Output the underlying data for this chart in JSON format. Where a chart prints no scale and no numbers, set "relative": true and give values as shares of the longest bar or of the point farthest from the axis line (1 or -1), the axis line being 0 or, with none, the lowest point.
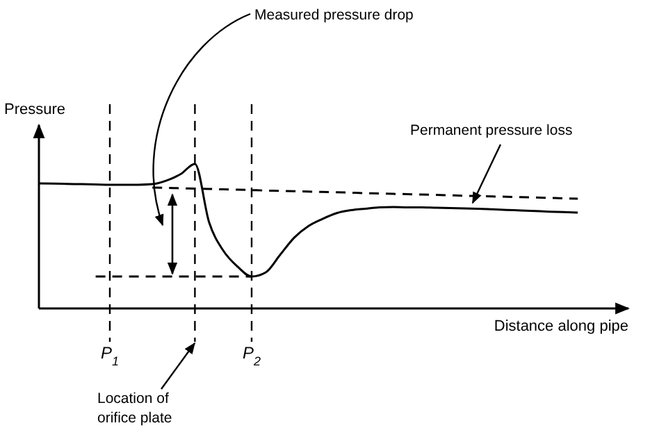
{
  "chart_data": {
    "type": "line",
    "relative": true,
    "ylabel": "Pressure",
    "xlabel": "Distance along pipe",
    "categories": [
      null,
      null,
      null,
      null,
      null,
      "P$_{1}$",
      null,
      null,
      null,
      null,
      null,
      null,
      null,
      null,
      null,
      "P$_{2}$",
      null,
      null,
      null,
      null,
      null,
      null,
      null,
      null,
      null,
      null,
      null,
      null,
      null,
      null,
      null,
      null,
      null,
      null,
      null,
      null,
      null,
      null,
      null
    ],
    "series": [
      {
        "color": "#000000",
        "line_style": "solid",
        "values": [
          0.865,
          0.864,
          0.862,
          0.86,
          0.858,
          0.856,
          0.856,
          0.856,
          0.86,
          0.885,
          0.93,
          1,
          0.596,
          0.4,
          0.29,
          0.221,
          0.25,
          0.37,
          0.49,
          0.57,
          0.62,
          0.66,
          0.68,
          0.69,
          0.7,
          0.702,
          0.7,
          0.7,
          0.697,
          0.695,
          0.692,
          0.69,
          0.686,
          0.682,
          0.678,
          0.674,
          0.67,
          0.667,
          0.663
        ]
      },
      {
        "color": "#000000",
        "line_style": "dashed",
        "values": [
          null,
          null,
          null,
          null,
          null,
          null,
          null,
          null,
          0.837,
          0.834,
          0.832,
          0.829,
          0.827,
          0.824,
          0.822,
          0.819,
          0.816,
          0.814,
          0.811,
          0.809,
          0.806,
          0.804,
          0.801,
          0.798,
          0.796,
          0.793,
          0.791,
          0.788,
          0.786,
          0.783,
          0.78,
          0.778,
          0.775,
          0.773,
          0.77,
          0.768,
          0.765,
          0.762,
          0.76
        ]
      },
      {
        "color": "#000000",
        "line_style": "dashed",
        "values": [
          null,
          null,
          null,
          null,
          0.221,
          0.221,
          0.221,
          0.221,
          0.221,
          0.221,
          0.221,
          0.221,
          0.221,
          0.221,
          0.221,
          0.221,
          null,
          null,
          null,
          null,
          null,
          null,
          null,
          null,
          null,
          null,
          null,
          null,
          null,
          null,
          null,
          null,
          null,
          null,
          null,
          null,
          null,
          null,
          null
        ]
      }
    ],
    "ref_lines": [
      {
        "axis": "x",
        "value": "P$_{1}$",
        "line_style": "dashed"
      },
      {
        "axis": "x",
        "value": "P$_{2}$",
        "line_style": "dashed"
      }
    ],
    "annotations": [
      "Measured pressure drop",
      "Permanent pressure loss",
      "Location of\norifice plate"
    ]
  }
}
